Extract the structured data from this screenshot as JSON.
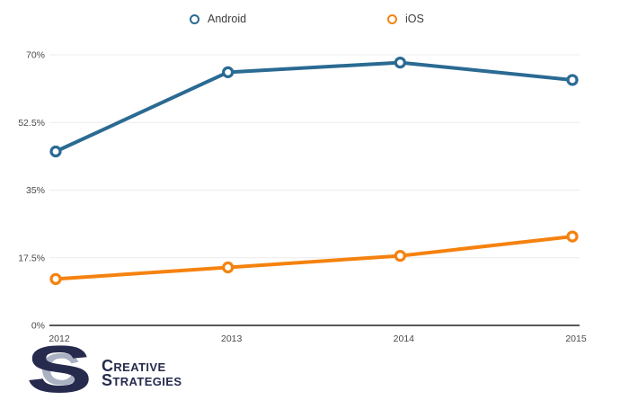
{
  "chart_data": {
    "type": "line",
    "title": "",
    "xlabel": "",
    "ylabel": "",
    "categories": [
      "2012",
      "2013",
      "2014",
      "2015"
    ],
    "series": [
      {
        "name": "Android",
        "color": "#2a6a93",
        "values": [
          45,
          65.5,
          68,
          63.5
        ]
      },
      {
        "name": "iOS",
        "color": "#f5820f",
        "values": [
          12,
          15,
          18,
          23
        ]
      }
    ],
    "ylim": [
      0,
      70
    ],
    "yticks": [
      0,
      17.5,
      35,
      52.5,
      70
    ],
    "ytick_labels": [
      "0%",
      "17.5%",
      "35%",
      "52.5%",
      "70%"
    ],
    "grid": true,
    "legend_position": "top"
  },
  "colors": {
    "grid": "#ececec",
    "axis": "#595959",
    "tick_text": "#4a4a4a",
    "legend_text": "#3c3c3c",
    "background": "#ffffff",
    "logo_navy": "#262b4e",
    "logo_silver": "#a9b1c3"
  },
  "logo": {
    "monogram_back": "C",
    "monogram_front": "S",
    "name_line1": "Creative",
    "name_line2": "Strategies"
  }
}
